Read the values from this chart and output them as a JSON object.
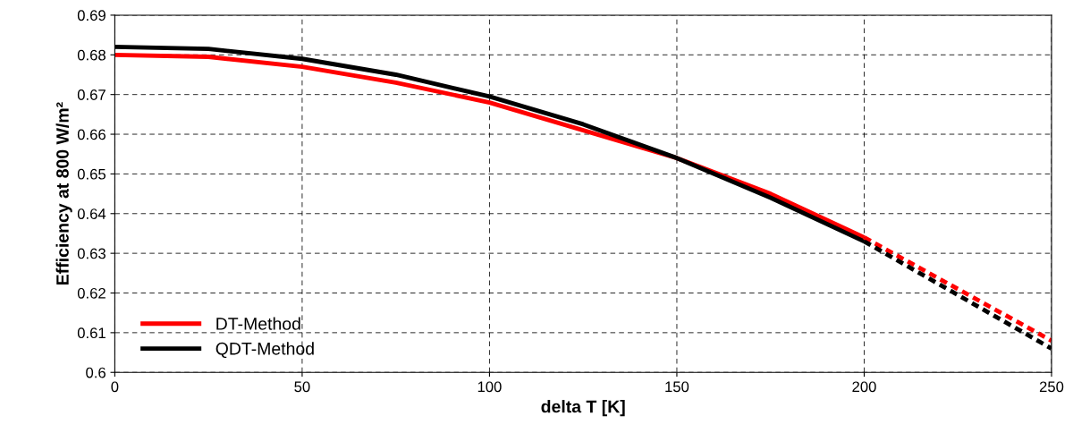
{
  "chart_data": {
    "type": "line",
    "xlabel": "delta T [K]",
    "ylabel": "Efficiency at 800 W/m²",
    "xlim": [
      0,
      250
    ],
    "xticks": [
      0,
      50,
      100,
      150,
      200,
      250
    ],
    "ylim": [
      0.6,
      0.69
    ],
    "yticks": [
      0.6,
      0.61,
      0.62,
      0.63,
      0.64,
      0.65,
      0.66,
      0.67,
      0.68,
      0.69
    ],
    "grid": true,
    "legend": "bottom left",
    "marker": "none",
    "series": [
      {
        "name": "DT-Method",
        "color": "#ff0000",
        "line_style": "solid",
        "x": [
          0,
          25,
          50,
          75,
          100,
          125,
          150,
          175,
          200
        ],
        "values": [
          0.68,
          0.6795,
          0.677,
          0.673,
          0.668,
          0.661,
          0.654,
          0.645,
          0.634
        ]
      },
      {
        "name": "QDT-Method",
        "color": "#000000",
        "line_style": "solid",
        "x": [
          0,
          25,
          50,
          75,
          100,
          125,
          150,
          175,
          200
        ],
        "values": [
          0.682,
          0.6815,
          0.679,
          0.675,
          0.6695,
          0.6625,
          0.654,
          0.644,
          0.633
        ]
      },
      {
        "color": "#ff0000",
        "line_style": "dashed",
        "x": [
          200,
          225,
          250
        ],
        "values": [
          0.634,
          0.621,
          0.608
        ]
      },
      {
        "color": "#000000",
        "line_style": "dashed",
        "x": [
          200,
          225,
          250
        ],
        "values": [
          0.633,
          0.6195,
          0.606
        ]
      }
    ]
  }
}
